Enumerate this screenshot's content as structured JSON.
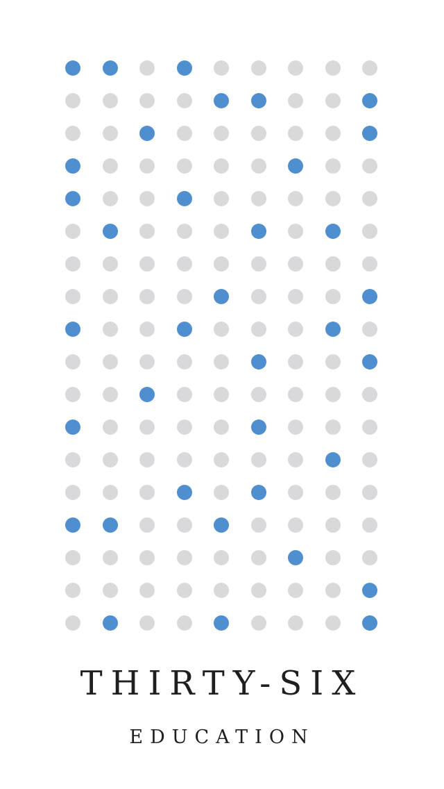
{
  "brand": {
    "title": "THIRTY-SIX",
    "subtitle": "EDUCATION"
  },
  "logo": {
    "icon": "dot-matrix-logo-icon",
    "columns": 9,
    "rows": 18,
    "colors": {
      "active": "#4f8fcf",
      "inactive": "#d9d9db",
      "background": "#ffffff"
    },
    "pattern": [
      "110100000",
      "000011001",
      "001000001",
      "100000100",
      "100100000",
      "010001010",
      "000000000",
      "000010001",
      "100100010",
      "000001001",
      "001000000",
      "100001000",
      "000000010",
      "000101000",
      "110010000",
      "000000100",
      "000000001",
      "010010001"
    ]
  }
}
